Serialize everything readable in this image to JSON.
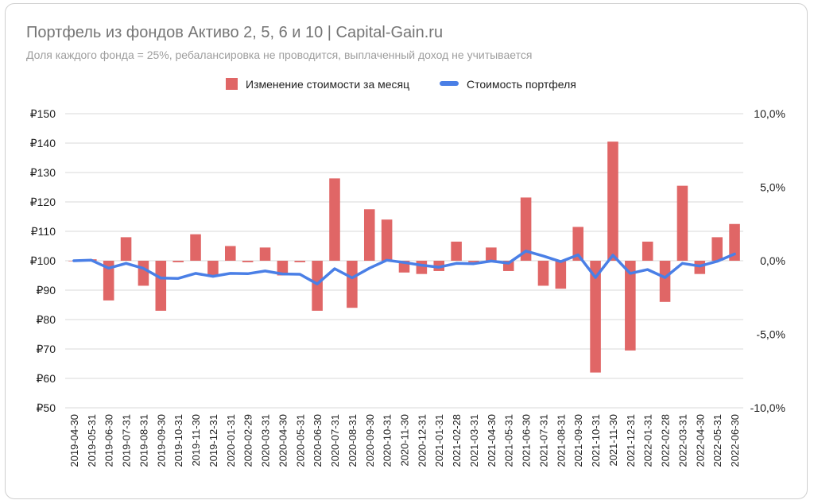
{
  "title": "Портфель из фондов Активо 2, 5, 6 и 10 | Capital-Gain.ru",
  "subtitle": "Доля каждого фонда = 25%, ребалансировка не проводится, выплаченный доход не учитывается",
  "colors": {
    "bars": "#e06666",
    "line": "#4a7fe6",
    "grid": "#d9d9d9"
  },
  "chart_data": {
    "type": "bar",
    "legend_position": "top",
    "grid": true,
    "categories": [
      "2019-04-30",
      "2019-05-31",
      "2019-06-30",
      "2019-07-31",
      "2019-08-31",
      "2019-09-30",
      "2019-10-31",
      "2019-11-30",
      "2019-12-31",
      "2020-01-31",
      "2020-02-29",
      "2020-03-31",
      "2020-04-30",
      "2020-05-31",
      "2020-06-30",
      "2020-07-31",
      "2020-08-31",
      "2020-09-30",
      "2020-10-31",
      "2020-11-30",
      "2020-12-31",
      "2021-01-31",
      "2021-02-28",
      "2021-03-31",
      "2021-04-30",
      "2021-05-31",
      "2021-06-30",
      "2021-07-31",
      "2021-08-31",
      "2021-09-30",
      "2021-10-31",
      "2021-11-30",
      "2021-12-31",
      "2022-01-31",
      "2022-02-28",
      "2022-03-31",
      "2022-04-30",
      "2022-05-31",
      "2022-06-30"
    ],
    "series": [
      {
        "name": "Изменение стоимости за месяц",
        "type": "bar",
        "axis": "right",
        "values": [
          0.0,
          0.1,
          -2.7,
          1.6,
          -1.7,
          -3.4,
          -0.1,
          1.8,
          -1.0,
          1.0,
          -0.1,
          0.9,
          -1.0,
          -0.1,
          -3.4,
          5.6,
          -3.2,
          3.5,
          2.8,
          -0.8,
          -0.9,
          -0.7,
          1.3,
          -0.1,
          0.9,
          -0.7,
          4.3,
          -1.7,
          -1.9,
          2.3,
          -7.6,
          8.1,
          -6.1,
          1.3,
          -2.8,
          5.1,
          -0.9,
          1.6,
          2.5
        ]
      },
      {
        "name": "Стоимость портфеля",
        "type": "line",
        "axis": "left",
        "values": [
          100.0,
          100.2,
          97.5,
          99.1,
          97.4,
          94.1,
          94.0,
          95.7,
          94.7,
          95.7,
          95.6,
          96.5,
          95.5,
          95.4,
          92.1,
          97.3,
          94.2,
          97.5,
          100.2,
          99.4,
          98.5,
          97.8,
          99.1,
          99.0,
          99.9,
          99.2,
          103.3,
          101.6,
          99.7,
          102.0,
          94.3,
          101.9,
          95.7,
          97.0,
          94.3,
          99.1,
          98.2,
          99.8,
          102.3
        ]
      }
    ],
    "y_left": {
      "ylim": [
        50,
        150
      ],
      "ticks": [
        150,
        140,
        130,
        120,
        110,
        100,
        90,
        80,
        70,
        60,
        50
      ],
      "tick_labels": [
        "₽150",
        "₽140",
        "₽130",
        "₽120",
        "₽110",
        "₽100",
        "₽90",
        "₽80",
        "₽70",
        "₽60",
        "₽50"
      ]
    },
    "y_right": {
      "ylim": [
        -10,
        10
      ],
      "ticks": [
        10,
        5,
        0,
        -5,
        -10
      ],
      "tick_labels": [
        "10,0%",
        "5,0%",
        "0,0%",
        "-5,0%",
        "-10,0%"
      ]
    }
  }
}
